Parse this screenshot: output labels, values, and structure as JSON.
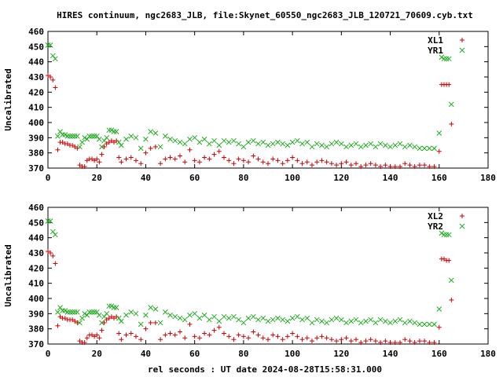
{
  "title": "HIRES continuum, ngc2683_JLB, file:Skynet_60550_ngc2683_JLB_120721_70609.cyb.txt",
  "xlabel": "rel seconds : UT date 2024-08-28T15:58:31.000",
  "colors": {
    "red": "#cc0000",
    "green": "#22aa22"
  },
  "chart_data": [
    {
      "type": "scatter",
      "ylabel": "Uncalibrated",
      "xlim": [
        0,
        180
      ],
      "ylim": [
        370,
        460
      ],
      "xticks": [
        0,
        20,
        40,
        60,
        80,
        100,
        120,
        140,
        160,
        180
      ],
      "yticks": [
        370,
        380,
        390,
        400,
        410,
        420,
        430,
        440,
        450,
        460
      ],
      "grid": false,
      "legend_position": "top-right",
      "series": [
        {
          "name": "XL1",
          "marker": "+",
          "color": "#cc0000",
          "x": [
            0,
            1,
            2,
            3,
            4,
            5,
            6,
            7,
            8,
            9,
            10,
            11,
            12,
            13,
            14,
            15,
            16,
            17,
            18,
            19,
            20,
            21,
            22,
            23,
            24,
            25,
            26,
            27,
            28,
            29,
            30,
            32,
            34,
            36,
            38,
            40,
            42,
            44,
            46,
            48,
            50,
            52,
            54,
            56,
            58,
            60,
            62,
            64,
            66,
            68,
            70,
            72,
            74,
            76,
            78,
            80,
            82,
            84,
            86,
            88,
            90,
            92,
            94,
            96,
            98,
            100,
            102,
            104,
            106,
            108,
            110,
            112,
            114,
            116,
            118,
            120,
            122,
            124,
            126,
            128,
            130,
            132,
            134,
            136,
            138,
            140,
            142,
            144,
            146,
            148,
            150,
            152,
            154,
            156,
            158,
            160,
            161,
            162,
            163,
            164,
            165
          ],
          "y": [
            431,
            430,
            428,
            423,
            382,
            387,
            387,
            386,
            386,
            385,
            385,
            384,
            383,
            372,
            371,
            371,
            375,
            376,
            376,
            375,
            376,
            374,
            379,
            384,
            386,
            387,
            388,
            387,
            388,
            377,
            374,
            376,
            377,
            375,
            373,
            380,
            383,
            384,
            373,
            376,
            377,
            376,
            378,
            374,
            382,
            375,
            374,
            377,
            376,
            379,
            381,
            377,
            375,
            373,
            376,
            375,
            374,
            378,
            376,
            374,
            373,
            376,
            375,
            373,
            375,
            377,
            375,
            373,
            374,
            372,
            374,
            375,
            374,
            373,
            372,
            373,
            374,
            372,
            373,
            371,
            372,
            373,
            372,
            371,
            372,
            371,
            371,
            371,
            373,
            372,
            371,
            372,
            372,
            371,
            371,
            381,
            425,
            425,
            425,
            425,
            399
          ]
        },
        {
          "name": "YR1",
          "marker": "x",
          "color": "#22aa22",
          "x": [
            0,
            1,
            2,
            3,
            4,
            5,
            6,
            7,
            8,
            9,
            10,
            11,
            12,
            13,
            14,
            15,
            16,
            17,
            18,
            19,
            20,
            21,
            22,
            23,
            24,
            25,
            26,
            27,
            28,
            29,
            30,
            32,
            34,
            36,
            38,
            40,
            42,
            44,
            46,
            48,
            50,
            52,
            54,
            56,
            58,
            60,
            62,
            64,
            66,
            68,
            70,
            72,
            74,
            76,
            78,
            80,
            82,
            84,
            86,
            88,
            90,
            92,
            94,
            96,
            98,
            100,
            102,
            104,
            106,
            108,
            110,
            112,
            114,
            116,
            118,
            120,
            122,
            124,
            126,
            128,
            130,
            132,
            134,
            136,
            138,
            140,
            142,
            144,
            146,
            148,
            150,
            152,
            154,
            156,
            158,
            160,
            161,
            162,
            163,
            164,
            165
          ],
          "y": [
            451,
            451,
            444,
            442,
            391,
            394,
            392,
            392,
            391,
            391,
            391,
            391,
            391,
            384,
            387,
            390,
            389,
            391,
            391,
            391,
            391,
            389,
            384,
            388,
            390,
            395,
            395,
            394,
            394,
            387,
            385,
            389,
            391,
            390,
            383,
            389,
            394,
            393,
            384,
            391,
            389,
            388,
            387,
            386,
            389,
            390,
            387,
            389,
            386,
            388,
            385,
            388,
            387,
            388,
            386,
            384,
            387,
            388,
            386,
            387,
            385,
            386,
            387,
            386,
            385,
            387,
            388,
            386,
            387,
            384,
            386,
            385,
            384,
            386,
            387,
            386,
            384,
            385,
            386,
            384,
            385,
            386,
            384,
            386,
            385,
            384,
            385,
            386,
            384,
            385,
            384,
            383,
            383,
            383,
            383,
            393,
            443,
            442,
            442,
            442,
            412
          ]
        }
      ]
    },
    {
      "type": "scatter",
      "ylabel": "Uncalibrated",
      "xlim": [
        0,
        180
      ],
      "ylim": [
        370,
        460
      ],
      "xticks": [
        0,
        20,
        40,
        60,
        80,
        100,
        120,
        140,
        160,
        180
      ],
      "yticks": [
        370,
        380,
        390,
        400,
        410,
        420,
        430,
        440,
        450,
        460
      ],
      "grid": false,
      "legend_position": "top-right",
      "series": [
        {
          "name": "XL2",
          "marker": "+",
          "color": "#cc0000",
          "x": [
            0,
            1,
            2,
            3,
            4,
            5,
            6,
            7,
            8,
            9,
            10,
            11,
            12,
            13,
            14,
            15,
            16,
            17,
            18,
            19,
            20,
            21,
            22,
            23,
            24,
            25,
            26,
            27,
            28,
            29,
            30,
            32,
            34,
            36,
            38,
            40,
            42,
            44,
            46,
            48,
            50,
            52,
            54,
            56,
            58,
            60,
            62,
            64,
            66,
            68,
            70,
            72,
            74,
            76,
            78,
            80,
            82,
            84,
            86,
            88,
            90,
            92,
            94,
            96,
            98,
            100,
            102,
            104,
            106,
            108,
            110,
            112,
            114,
            116,
            118,
            120,
            122,
            124,
            126,
            128,
            130,
            132,
            134,
            136,
            138,
            140,
            142,
            144,
            146,
            148,
            150,
            152,
            154,
            156,
            158,
            160,
            161,
            162,
            163,
            164,
            165
          ],
          "y": [
            431,
            430,
            428,
            423,
            382,
            388,
            387,
            387,
            386,
            386,
            386,
            385,
            384,
            372,
            371,
            371,
            374,
            376,
            376,
            375,
            376,
            374,
            379,
            384,
            386,
            387,
            388,
            387,
            388,
            377,
            373,
            376,
            377,
            375,
            373,
            380,
            384,
            384,
            373,
            376,
            377,
            376,
            378,
            374,
            383,
            375,
            374,
            377,
            376,
            379,
            381,
            377,
            375,
            373,
            376,
            375,
            374,
            378,
            376,
            374,
            373,
            376,
            375,
            373,
            375,
            377,
            375,
            373,
            374,
            372,
            374,
            375,
            374,
            373,
            372,
            373,
            374,
            372,
            373,
            371,
            372,
            373,
            372,
            371,
            372,
            371,
            371,
            371,
            373,
            372,
            371,
            372,
            372,
            371,
            371,
            381,
            426,
            426,
            425,
            425,
            399
          ]
        },
        {
          "name": "YR2",
          "marker": "x",
          "color": "#22aa22",
          "x": [
            0,
            1,
            2,
            3,
            4,
            5,
            6,
            7,
            8,
            9,
            10,
            11,
            12,
            13,
            14,
            15,
            16,
            17,
            18,
            19,
            20,
            21,
            22,
            23,
            24,
            25,
            26,
            27,
            28,
            29,
            30,
            32,
            34,
            36,
            38,
            40,
            42,
            44,
            46,
            48,
            50,
            52,
            54,
            56,
            58,
            60,
            62,
            64,
            66,
            68,
            70,
            72,
            74,
            76,
            78,
            80,
            82,
            84,
            86,
            88,
            90,
            92,
            94,
            96,
            98,
            100,
            102,
            104,
            106,
            108,
            110,
            112,
            114,
            116,
            118,
            120,
            122,
            124,
            126,
            128,
            130,
            132,
            134,
            136,
            138,
            140,
            142,
            144,
            146,
            148,
            150,
            152,
            154,
            156,
            158,
            160,
            161,
            162,
            163,
            164,
            165
          ],
          "y": [
            451,
            451,
            444,
            442,
            391,
            394,
            392,
            392,
            391,
            391,
            391,
            391,
            391,
            384,
            387,
            390,
            389,
            391,
            391,
            391,
            391,
            389,
            384,
            388,
            390,
            395,
            395,
            394,
            394,
            387,
            385,
            389,
            391,
            390,
            383,
            389,
            394,
            393,
            384,
            391,
            389,
            388,
            387,
            386,
            389,
            390,
            387,
            389,
            386,
            388,
            385,
            388,
            387,
            388,
            386,
            384,
            387,
            388,
            386,
            387,
            385,
            386,
            387,
            386,
            385,
            387,
            388,
            386,
            387,
            384,
            386,
            385,
            384,
            386,
            387,
            386,
            384,
            385,
            386,
            384,
            385,
            386,
            384,
            386,
            385,
            384,
            385,
            386,
            384,
            385,
            384,
            383,
            383,
            383,
            383,
            393,
            443,
            442,
            442,
            442,
            412
          ]
        }
      ]
    }
  ]
}
